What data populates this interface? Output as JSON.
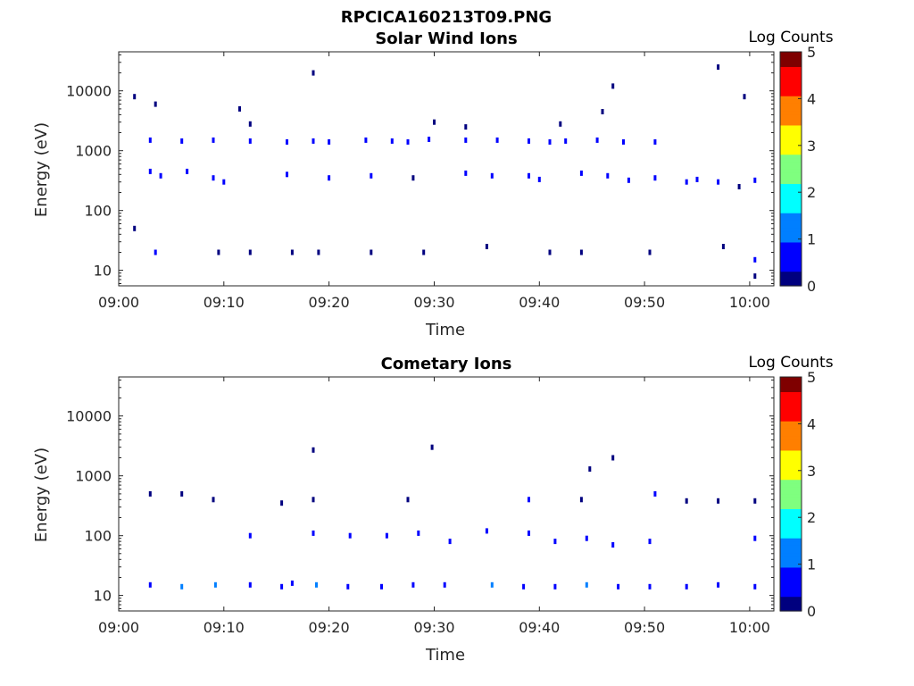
{
  "figure_title": "RPCICA160213T09.PNG",
  "colormap": [
    "#00007f",
    "#0000ff",
    "#007fff",
    "#00ffff",
    "#7fff7f",
    "#ffff00",
    "#ff7f00",
    "#ff0000",
    "#7f0000"
  ],
  "chart_data": [
    {
      "type": "heatmap",
      "title": "Solar Wind Ions",
      "xlabel": "Time",
      "ylabel": "Energy (eV)",
      "x_ticks": [
        "09:00",
        "09:10",
        "09:20",
        "09:30",
        "09:40",
        "09:50",
        "10:00"
      ],
      "x_range_minutes": [
        0,
        62.3
      ],
      "y_scale": "log",
      "y_range": [
        5.5,
        45000
      ],
      "y_ticks": [
        {
          "value": 10,
          "label": "10"
        },
        {
          "value": 100,
          "label": "100"
        },
        {
          "value": 1000,
          "label": "1000"
        },
        {
          "value": 10000,
          "label": "10000"
        }
      ],
      "colorbar": {
        "label": "Log Counts",
        "range": [
          0,
          5
        ],
        "ticks": [
          "0",
          "1",
          "2",
          "3",
          "4",
          "5"
        ]
      },
      "points": [
        [
          1.5,
          8000,
          0.1
        ],
        [
          3.5,
          6000,
          0.1
        ],
        [
          3,
          1500,
          0.6
        ],
        [
          6,
          1450,
          0.5
        ],
        [
          9,
          1500,
          0.5
        ],
        [
          12.5,
          1450,
          0.6
        ],
        [
          16,
          1400,
          0.6
        ],
        [
          18.5,
          1450,
          0.6
        ],
        [
          20,
          1400,
          0.5
        ],
        [
          23.5,
          1500,
          0.6
        ],
        [
          26,
          1450,
          0.5
        ],
        [
          27.5,
          1400,
          0.5
        ],
        [
          29.5,
          1550,
          0.6
        ],
        [
          33,
          1500,
          0.5
        ],
        [
          36,
          1500,
          0.5
        ],
        [
          39,
          1450,
          0.5
        ],
        [
          41,
          1400,
          0.5
        ],
        [
          42.5,
          1450,
          0.6
        ],
        [
          45.5,
          1500,
          0.6
        ],
        [
          48,
          1400,
          0.5
        ],
        [
          51,
          1400,
          0.5
        ],
        [
          3,
          450,
          0.5
        ],
        [
          4,
          380,
          0.5
        ],
        [
          6.5,
          450,
          0.5
        ],
        [
          9,
          350,
          0.4
        ],
        [
          10,
          300,
          0.4
        ],
        [
          16,
          400,
          0.4
        ],
        [
          20,
          350,
          0.4
        ],
        [
          24,
          380,
          0.4
        ],
        [
          28,
          350,
          0.3
        ],
        [
          33,
          420,
          0.5
        ],
        [
          35.5,
          380,
          0.4
        ],
        [
          39,
          380,
          0.6
        ],
        [
          40,
          330,
          0.4
        ],
        [
          44,
          420,
          0.4
        ],
        [
          46.5,
          380,
          0.5
        ],
        [
          48.5,
          320,
          0.5
        ],
        [
          51,
          350,
          0.5
        ],
        [
          54,
          300,
          0.7
        ],
        [
          55,
          330,
          0.6
        ],
        [
          57,
          300,
          0.4
        ],
        [
          59,
          250,
          0.3
        ],
        [
          60.5,
          320,
          0.5
        ],
        [
          1.5,
          50,
          0.3
        ],
        [
          3.5,
          20,
          0.4
        ],
        [
          9.5,
          20,
          0.3
        ],
        [
          12.5,
          20,
          0.3
        ],
        [
          16.5,
          20,
          0.3
        ],
        [
          19,
          20,
          0.3
        ],
        [
          24,
          20,
          0.3
        ],
        [
          29,
          20,
          0.3
        ],
        [
          35,
          25,
          0.3
        ],
        [
          41,
          20,
          0.3
        ],
        [
          44,
          20,
          0.3
        ],
        [
          50.5,
          20,
          0.3
        ],
        [
          57.5,
          25,
          0.3
        ],
        [
          60.5,
          15,
          0.4
        ],
        [
          60.5,
          8,
          0.3
        ],
        [
          18.5,
          20000,
          0.1
        ],
        [
          57,
          25000,
          0.1
        ],
        [
          47,
          12000,
          0.1
        ],
        [
          11.5,
          5000,
          0.1
        ],
        [
          30,
          3000,
          0.2
        ],
        [
          33,
          2500,
          0.2
        ],
        [
          12.5,
          2800,
          0.2
        ],
        [
          42,
          2800,
          0.2
        ],
        [
          46,
          4500,
          0.2
        ],
        [
          59.5,
          8000,
          0.1
        ]
      ]
    },
    {
      "type": "heatmap",
      "title": "Cometary Ions",
      "xlabel": "Time",
      "ylabel": "Energy (eV)",
      "x_ticks": [
        "09:00",
        "09:10",
        "09:20",
        "09:30",
        "09:40",
        "09:50",
        "10:00"
      ],
      "x_range_minutes": [
        0,
        62.3
      ],
      "y_scale": "log",
      "y_range": [
        5.5,
        45000
      ],
      "y_ticks": [
        {
          "value": 10,
          "label": "10"
        },
        {
          "value": 100,
          "label": "100"
        },
        {
          "value": 1000,
          "label": "1000"
        },
        {
          "value": 10000,
          "label": "10000"
        }
      ],
      "colorbar": {
        "label": "Log Counts",
        "range": [
          0,
          5
        ],
        "ticks": [
          "0",
          "1",
          "2",
          "3",
          "4",
          "5"
        ]
      },
      "points": [
        [
          3,
          15,
          0.9
        ],
        [
          6,
          14,
          1.0
        ],
        [
          9.2,
          15,
          1.1
        ],
        [
          12.5,
          15,
          0.9
        ],
        [
          15.5,
          14,
          0.8
        ],
        [
          16.5,
          16,
          0.9
        ],
        [
          18.8,
          15,
          1.0
        ],
        [
          21.8,
          14,
          0.9
        ],
        [
          25,
          14,
          0.9
        ],
        [
          28,
          15,
          0.8
        ],
        [
          31,
          15,
          0.8
        ],
        [
          35.5,
          15,
          1.0
        ],
        [
          38.5,
          14,
          0.9
        ],
        [
          41.5,
          14,
          0.9
        ],
        [
          44.5,
          15,
          1.0
        ],
        [
          47.5,
          14,
          0.9
        ],
        [
          50.5,
          14,
          0.8
        ],
        [
          54,
          14,
          0.9
        ],
        [
          57,
          15,
          0.9
        ],
        [
          60.5,
          14,
          0.8
        ],
        [
          12.5,
          100,
          0.5
        ],
        [
          18.5,
          110,
          0.5
        ],
        [
          22,
          100,
          0.5
        ],
        [
          25.5,
          100,
          0.4
        ],
        [
          28.5,
          110,
          0.5
        ],
        [
          31.5,
          80,
          0.4
        ],
        [
          35,
          120,
          0.5
        ],
        [
          39,
          110,
          0.5
        ],
        [
          41.5,
          80,
          0.4
        ],
        [
          44.5,
          90,
          0.5
        ],
        [
          47,
          70,
          0.4
        ],
        [
          50.5,
          80,
          0.4
        ],
        [
          60.5,
          90,
          0.4
        ],
        [
          3,
          500,
          0.3
        ],
        [
          6,
          500,
          0.3
        ],
        [
          9,
          400,
          0.3
        ],
        [
          15.5,
          350,
          0.3
        ],
        [
          18.5,
          400,
          0.3
        ],
        [
          27.5,
          400,
          0.3
        ],
        [
          39,
          400,
          0.6
        ],
        [
          44,
          400,
          0.3
        ],
        [
          51,
          500,
          0.4
        ],
        [
          54,
          380,
          0.3
        ],
        [
          57,
          380,
          0.3
        ],
        [
          60.5,
          380,
          0.3
        ],
        [
          18.5,
          2700,
          0.1
        ],
        [
          29.8,
          3000,
          0.1
        ],
        [
          44.8,
          1300,
          0.1
        ],
        [
          47,
          2000,
          0.1
        ]
      ]
    }
  ]
}
